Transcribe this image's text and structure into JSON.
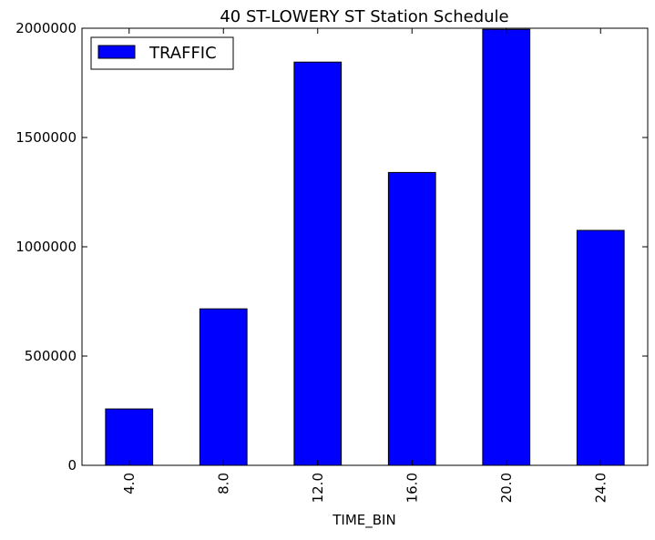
{
  "chart_data": {
    "type": "bar",
    "title": "40 ST-LOWERY ST Station Schedule",
    "xlabel": "TIME_BIN",
    "ylabel": "",
    "categories": [
      "4.0",
      "8.0",
      "12.0",
      "16.0",
      "20.0",
      "24.0"
    ],
    "series": [
      {
        "name": "TRAFFIC",
        "values": [
          258000,
          716000,
          1845000,
          1340000,
          1995000,
          1075000
        ]
      }
    ],
    "ylim": [
      0,
      2000000
    ],
    "yticks": [
      0,
      500000,
      1000000,
      1500000,
      2000000
    ],
    "ytick_labels": [
      "0",
      "500000",
      "1000000",
      "1500000",
      "2000000"
    ],
    "grid": false,
    "legend_position": "top-left",
    "colors": {
      "bar_fill": "#0000ff",
      "bar_edge": "#000000",
      "axes": "#000000",
      "background": "#ffffff"
    }
  }
}
